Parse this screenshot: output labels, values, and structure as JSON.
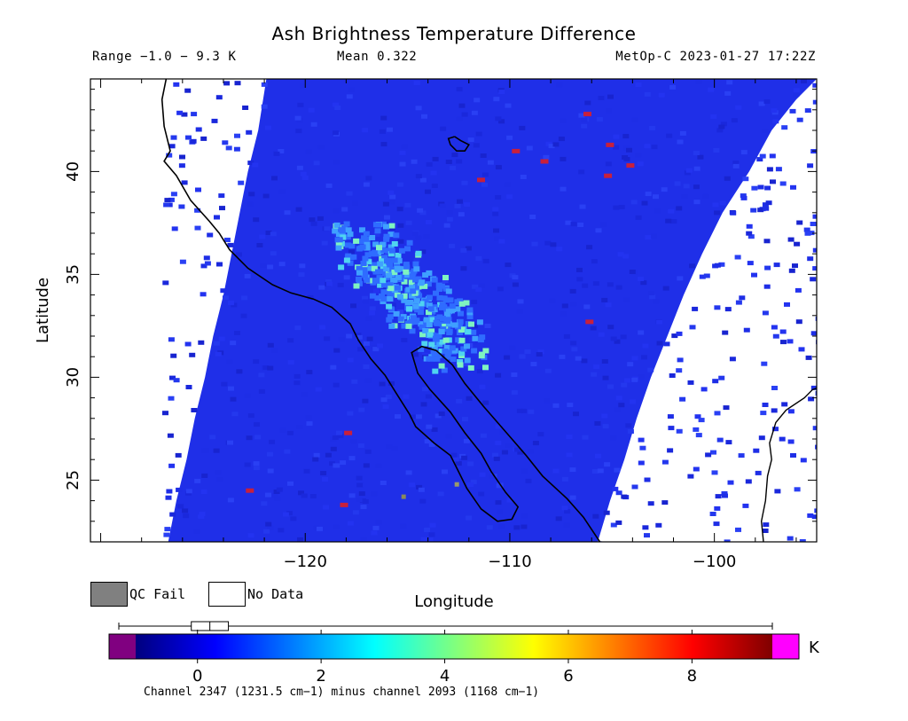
{
  "title": "Ash Brightness Temperature Difference",
  "header": {
    "range": "Range −1.0 − 9.3 K",
    "mean": "Mean 0.322",
    "satellite_time": "MetOp-C 2023-01-27 17:22Z"
  },
  "map": {
    "xlabel": "Longitude",
    "ylabel": "Latitude",
    "lon_range": [
      -130.5,
      -95.0
    ],
    "lat_range": [
      22.0,
      44.5
    ],
    "lon_ticks": [
      {
        "value": -120,
        "label": "−120"
      },
      {
        "value": -110,
        "label": "−110"
      },
      {
        "value": -100,
        "label": "−100"
      }
    ],
    "lat_ticks": [
      {
        "value": 25,
        "label": "25"
      },
      {
        "value": 30,
        "label": "30"
      },
      {
        "value": 35,
        "label": "35"
      },
      {
        "value": 40,
        "label": "40"
      }
    ],
    "background_color": "#1f2fe8",
    "plume_colors": [
      "#2f6cff",
      "#3fa0ff",
      "#4fd4f0",
      "#7ff4c0"
    ],
    "hot_pixel_color": "#c8203c"
  },
  "legend": {
    "qc_fail_label": "QC Fail",
    "qc_fail_color": "#808080",
    "no_data_label": "No Data",
    "no_data_color": "#ffffff"
  },
  "colorbar": {
    "min": -1.0,
    "max": 9.3,
    "ticks": [
      0,
      2,
      4,
      6,
      8
    ],
    "unit": "K",
    "under_color": "#800080",
    "over_color": "#ff00ff",
    "colors": [
      "#00007f",
      "#0000ff",
      "#007fff",
      "#00ffff",
      "#7fff7f",
      "#ffff00",
      "#ff7f00",
      "#ff0000",
      "#7f0000"
    ],
    "box_stats": {
      "q1": -0.1,
      "median": 0.2,
      "q3": 0.5
    }
  },
  "footnote": "Channel 2347 (1231.5 cm−1) minus channel 2093 (1168 cm−1)"
}
